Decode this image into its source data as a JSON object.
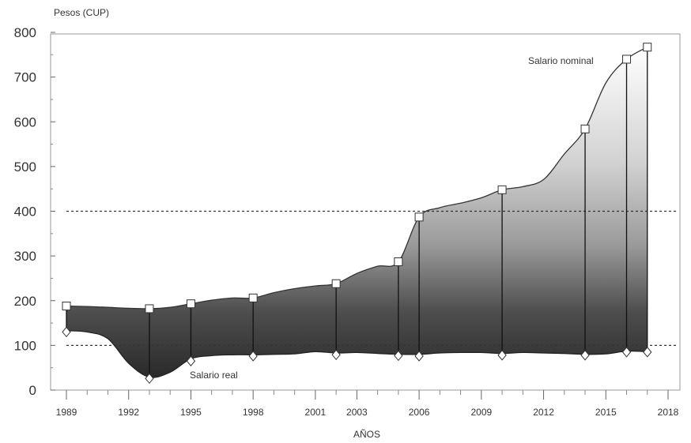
{
  "chart_data": {
    "type": "area",
    "ylabel": "Pesos (CUP)",
    "xlabel": "AÑOS",
    "ylim": [
      0,
      800
    ],
    "xlim": [
      1989,
      2018
    ],
    "y_ticks": [
      "0",
      "100",
      "200",
      "300",
      "400",
      "500",
      "600",
      "700",
      "800"
    ],
    "x_ticks": [
      "1989",
      "1992",
      "1995",
      "1998",
      "2001",
      "2003",
      "2006",
      "2009",
      "2012",
      "2015",
      "2018"
    ],
    "reference_lines": [
      100,
      400
    ],
    "series": [
      {
        "name": "Salario nominal",
        "line": [
          [
            1989,
            188
          ],
          [
            1990,
            187
          ],
          [
            1991,
            185
          ],
          [
            1992,
            183
          ],
          [
            1993,
            182
          ],
          [
            1994,
            185
          ],
          [
            1995,
            193
          ],
          [
            1996,
            201
          ],
          [
            1997,
            206
          ],
          [
            1998,
            206
          ],
          [
            1999,
            218
          ],
          [
            2000,
            227
          ],
          [
            2001,
            233
          ],
          [
            2002,
            238
          ],
          [
            2003,
            261
          ],
          [
            2004,
            277
          ],
          [
            2005,
            287
          ],
          [
            2006,
            387
          ],
          [
            2007,
            408
          ],
          [
            2008,
            418
          ],
          [
            2009,
            430
          ],
          [
            2010,
            448
          ],
          [
            2011,
            455
          ],
          [
            2012,
            471
          ],
          [
            2013,
            528
          ],
          [
            2014,
            584
          ],
          [
            2015,
            687
          ],
          [
            2016,
            740
          ],
          [
            2017,
            767
          ]
        ],
        "markers": [
          [
            1989,
            188
          ],
          [
            1993,
            182
          ],
          [
            1995,
            193
          ],
          [
            1998,
            206
          ],
          [
            2002,
            238
          ],
          [
            2005,
            287
          ],
          [
            2006,
            387
          ],
          [
            2010,
            448
          ],
          [
            2014,
            584
          ],
          [
            2016,
            740
          ],
          [
            2017,
            767
          ]
        ]
      },
      {
        "name": "Salario real",
        "line": [
          [
            1989,
            133
          ],
          [
            1990,
            130
          ],
          [
            1991,
            115
          ],
          [
            1992,
            60
          ],
          [
            1993,
            29
          ],
          [
            1994,
            40
          ],
          [
            1995,
            70
          ],
          [
            1996,
            77
          ],
          [
            1997,
            79
          ],
          [
            1998,
            79
          ],
          [
            1999,
            80
          ],
          [
            2000,
            81
          ],
          [
            2001,
            86
          ],
          [
            2002,
            83
          ],
          [
            2003,
            84
          ],
          [
            2004,
            82
          ],
          [
            2005,
            80
          ],
          [
            2006,
            80
          ],
          [
            2007,
            83
          ],
          [
            2008,
            84
          ],
          [
            2009,
            84
          ],
          [
            2010,
            82
          ],
          [
            2011,
            84
          ],
          [
            2012,
            83
          ],
          [
            2013,
            82
          ],
          [
            2014,
            80
          ],
          [
            2015,
            81
          ],
          [
            2016,
            87
          ],
          [
            2017,
            86
          ]
        ],
        "markers": [
          [
            1989,
            130
          ],
          [
            1993,
            26
          ],
          [
            1995,
            65
          ],
          [
            1998,
            76
          ],
          [
            2002,
            79
          ],
          [
            2005,
            77
          ],
          [
            2006,
            76
          ],
          [
            2010,
            78
          ],
          [
            2014,
            78
          ],
          [
            2016,
            85
          ],
          [
            2017,
            85
          ]
        ]
      }
    ]
  }
}
